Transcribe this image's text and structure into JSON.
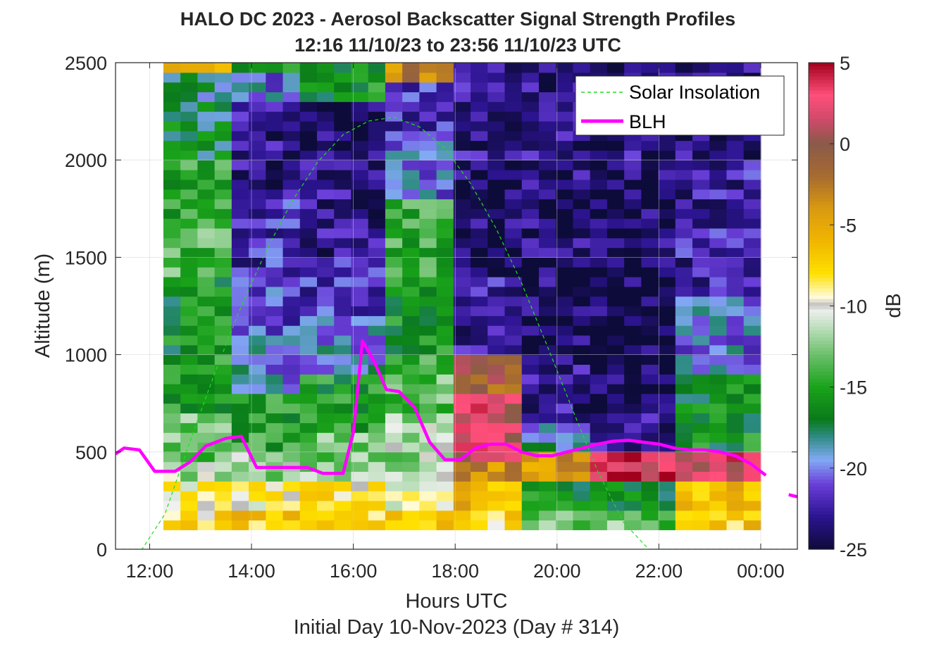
{
  "chart_data": {
    "type": "heatmap",
    "title": [
      "HALO DC 2023 - Aerosol Backscatter Signal Strength Profiles",
      "12:16 11/10/23 to 23:56 11/10/23  UTC"
    ],
    "xlabel": "Hours UTC",
    "xlabel2": "Initial Day 10-Nov-2023 (Day # 314)",
    "ylabel": "Altitude (m)",
    "colorbar_label": "dB",
    "x_ticks": [
      "12:00",
      "14:00",
      "16:00",
      "18:00",
      "20:00",
      "22:00",
      "00:00"
    ],
    "x_tick_hours": [
      12,
      14,
      16,
      18,
      20,
      22,
      24
    ],
    "xlim_hours": [
      11.33,
      24.72
    ],
    "ylim": [
      0,
      2500
    ],
    "y_ticks": [
      0,
      500,
      1000,
      1500,
      2000,
      2500
    ],
    "clim": [
      -25,
      5
    ],
    "c_ticks": [
      5,
      0,
      -5,
      -10,
      -15,
      -20,
      -25
    ],
    "colormap_stops": [
      [
        -25,
        "#0d0b3a"
      ],
      [
        -23,
        "#2c1490"
      ],
      [
        -21,
        "#6a3ed8"
      ],
      [
        -19.5,
        "#82aaf5"
      ],
      [
        -18,
        "#2a8a7e"
      ],
      [
        -17,
        "#0a7a1a"
      ],
      [
        -15,
        "#1aa31a"
      ],
      [
        -13,
        "#6cc06c"
      ],
      [
        -11.5,
        "#b4dcb4"
      ],
      [
        -10.2,
        "#f0f0f0"
      ],
      [
        -10,
        "#b9b9b9"
      ],
      [
        -9.5,
        "#fffbe0"
      ],
      [
        -8,
        "#ffe000"
      ],
      [
        -6,
        "#f0b500"
      ],
      [
        -4,
        "#d99a10"
      ],
      [
        -2,
        "#a66b30"
      ],
      [
        0,
        "#8a5a4a"
      ],
      [
        1.5,
        "#d04a6a"
      ],
      [
        3,
        "#ff4f7a"
      ],
      [
        5,
        "#a0001c"
      ]
    ],
    "heatmap": {
      "x_start_hour": 12.27,
      "x_end_hour": 24.0,
      "y_min": 100,
      "y_max": 2500,
      "n_cols": 35,
      "n_rows": 48,
      "note": "Backscatter values in dB, column-major: each column lists rows bottom(100 m) to top(2500 m) at 50 m spacing.",
      "profiles": [
        {
          "cols": [
            0,
            1,
            2,
            3
          ],
          "bands": [
            [
              100,
              200,
              -8
            ],
            [
              200,
              350,
              -9.5
            ],
            [
              350,
              450,
              -11.5
            ],
            [
              450,
              700,
              -13
            ],
            [
              700,
              1000,
              -15
            ],
            [
              1000,
              1400,
              -16
            ],
            [
              1400,
              1700,
              -14
            ],
            [
              1700,
              2000,
              -15
            ],
            [
              2000,
              2300,
              -17
            ],
            [
              2300,
              2450,
              -18
            ],
            [
              2450,
              2500,
              -5
            ]
          ]
        },
        {
          "cols": [
            4,
            5,
            6,
            7
          ],
          "bands": [
            [
              100,
              200,
              -7
            ],
            [
              200,
              350,
              -9.5
            ],
            [
              350,
              500,
              -12
            ],
            [
              500,
              800,
              -15
            ],
            [
              800,
              1100,
              -19.5
            ],
            [
              1100,
              1400,
              -21
            ],
            [
              1400,
              1800,
              -22
            ],
            [
              1800,
              2300,
              -23
            ],
            [
              2300,
              2450,
              -20
            ],
            [
              2450,
              2500,
              -16
            ]
          ]
        },
        {
          "cols": [
            8,
            9,
            10,
            11,
            12
          ],
          "bands": [
            [
              100,
              200,
              -7
            ],
            [
              200,
              350,
              -8
            ],
            [
              350,
              600,
              -12.5
            ],
            [
              600,
              900,
              -15.5
            ],
            [
              900,
              1200,
              -19.5
            ],
            [
              1200,
              1500,
              -21.5
            ],
            [
              1500,
              2000,
              -23
            ],
            [
              2000,
              2300,
              -24
            ],
            [
              2300,
              2500,
              -16
            ]
          ]
        },
        {
          "cols": [
            13,
            14,
            15,
            16
          ],
          "bands": [
            [
              100,
              200,
              -7
            ],
            [
              200,
              350,
              -9.5
            ],
            [
              350,
              700,
              -12
            ],
            [
              700,
              1000,
              -13.5
            ],
            [
              1000,
              1400,
              -15.5
            ],
            [
              1400,
              1800,
              -14.5
            ],
            [
              1800,
              2100,
              -20
            ],
            [
              2100,
              2400,
              -22
            ],
            [
              2400,
              2500,
              -3
            ]
          ]
        },
        {
          "cols": [
            17,
            18,
            19,
            20
          ],
          "bands": [
            [
              100,
              200,
              -8
            ],
            [
              200,
              350,
              -6
            ],
            [
              350,
              450,
              -4
            ],
            [
              450,
              800,
              2
            ],
            [
              800,
              1000,
              -1
            ],
            [
              1000,
              1400,
              -22.5
            ],
            [
              1400,
              2000,
              -24
            ],
            [
              2000,
              2500,
              -23
            ]
          ]
        },
        {
          "cols": [
            21,
            22,
            23,
            24
          ],
          "bands": [
            [
              100,
              200,
              -13
            ],
            [
              200,
              350,
              -16
            ],
            [
              350,
              500,
              -4
            ],
            [
              500,
              650,
              -19
            ],
            [
              650,
              1000,
              -23
            ],
            [
              1000,
              1500,
              -24
            ],
            [
              1500,
              2000,
              -23.5
            ],
            [
              2000,
              2500,
              -23
            ]
          ]
        },
        {
          "cols": [
            25,
            26,
            27,
            28,
            29
          ],
          "bands": [
            [
              100,
              200,
              -13
            ],
            [
              200,
              350,
              -17
            ],
            [
              350,
              500,
              3
            ],
            [
              500,
              700,
              -23
            ],
            [
              700,
              1500,
              -24.5
            ],
            [
              1500,
              2000,
              -24
            ],
            [
              2000,
              2500,
              -23
            ]
          ]
        },
        {
          "cols": [
            30,
            31,
            32,
            33,
            34
          ],
          "bands": [
            [
              100,
              200,
              -7
            ],
            [
              200,
              350,
              -6
            ],
            [
              350,
              500,
              2.5
            ],
            [
              500,
              900,
              -16
            ],
            [
              900,
              1300,
              -20
            ],
            [
              1300,
              2000,
              -22.5
            ],
            [
              2000,
              2500,
              -23.5
            ]
          ]
        }
      ]
    },
    "series": [
      {
        "name": "Solar Insolation",
        "style": "dashed",
        "color": "#22dd22",
        "x": [
          11.33,
          11.85,
          12.3,
          12.8,
          13.3,
          13.8,
          14.3,
          14.8,
          15.3,
          15.8,
          16.3,
          16.8,
          17.3,
          17.8,
          18.3,
          18.8,
          19.3,
          19.8,
          20.3,
          20.8,
          21.3,
          21.8,
          22.0,
          22.3,
          24.72
        ],
        "y": [
          0,
          0,
          180,
          560,
          920,
          1250,
          1540,
          1790,
          1990,
          2130,
          2200,
          2220,
          2170,
          2060,
          1880,
          1650,
          1370,
          1050,
          720,
          400,
          140,
          0,
          0,
          0,
          0
        ]
      },
      {
        "name": "BLH",
        "style": "solid",
        "color": "#ff00ff",
        "x": [
          11.33,
          11.5,
          11.8,
          12.1,
          12.5,
          12.8,
          13.1,
          13.5,
          13.8,
          14.1,
          14.4,
          14.8,
          15.1,
          15.4,
          15.8,
          16.0,
          16.18,
          16.4,
          16.65,
          16.9,
          17.2,
          17.5,
          17.8,
          18.1,
          18.4,
          18.7,
          19.0,
          19.3,
          19.6,
          19.9,
          20.2,
          20.5,
          20.8,
          21.1,
          21.4,
          21.7,
          22.0,
          22.3,
          22.6,
          22.9,
          23.2,
          23.5,
          23.8,
          24.1
        ],
        "y": [
          490,
          520,
          510,
          400,
          400,
          450,
          530,
          570,
          580,
          420,
          420,
          420,
          420,
          390,
          390,
          600,
          1070,
          970,
          820,
          810,
          730,
          550,
          460,
          460,
          520,
          540,
          540,
          500,
          480,
          480,
          500,
          520,
          540,
          555,
          560,
          550,
          540,
          520,
          510,
          510,
          500,
          480,
          440,
          380
        ],
        "extra_segment": {
          "x": [
            24.55,
            24.72
          ],
          "y": [
            280,
            270
          ]
        }
      }
    ],
    "legend": {
      "placement": "top-right",
      "entries": [
        "Solar Insolation",
        "BLH"
      ]
    },
    "grid": true
  }
}
